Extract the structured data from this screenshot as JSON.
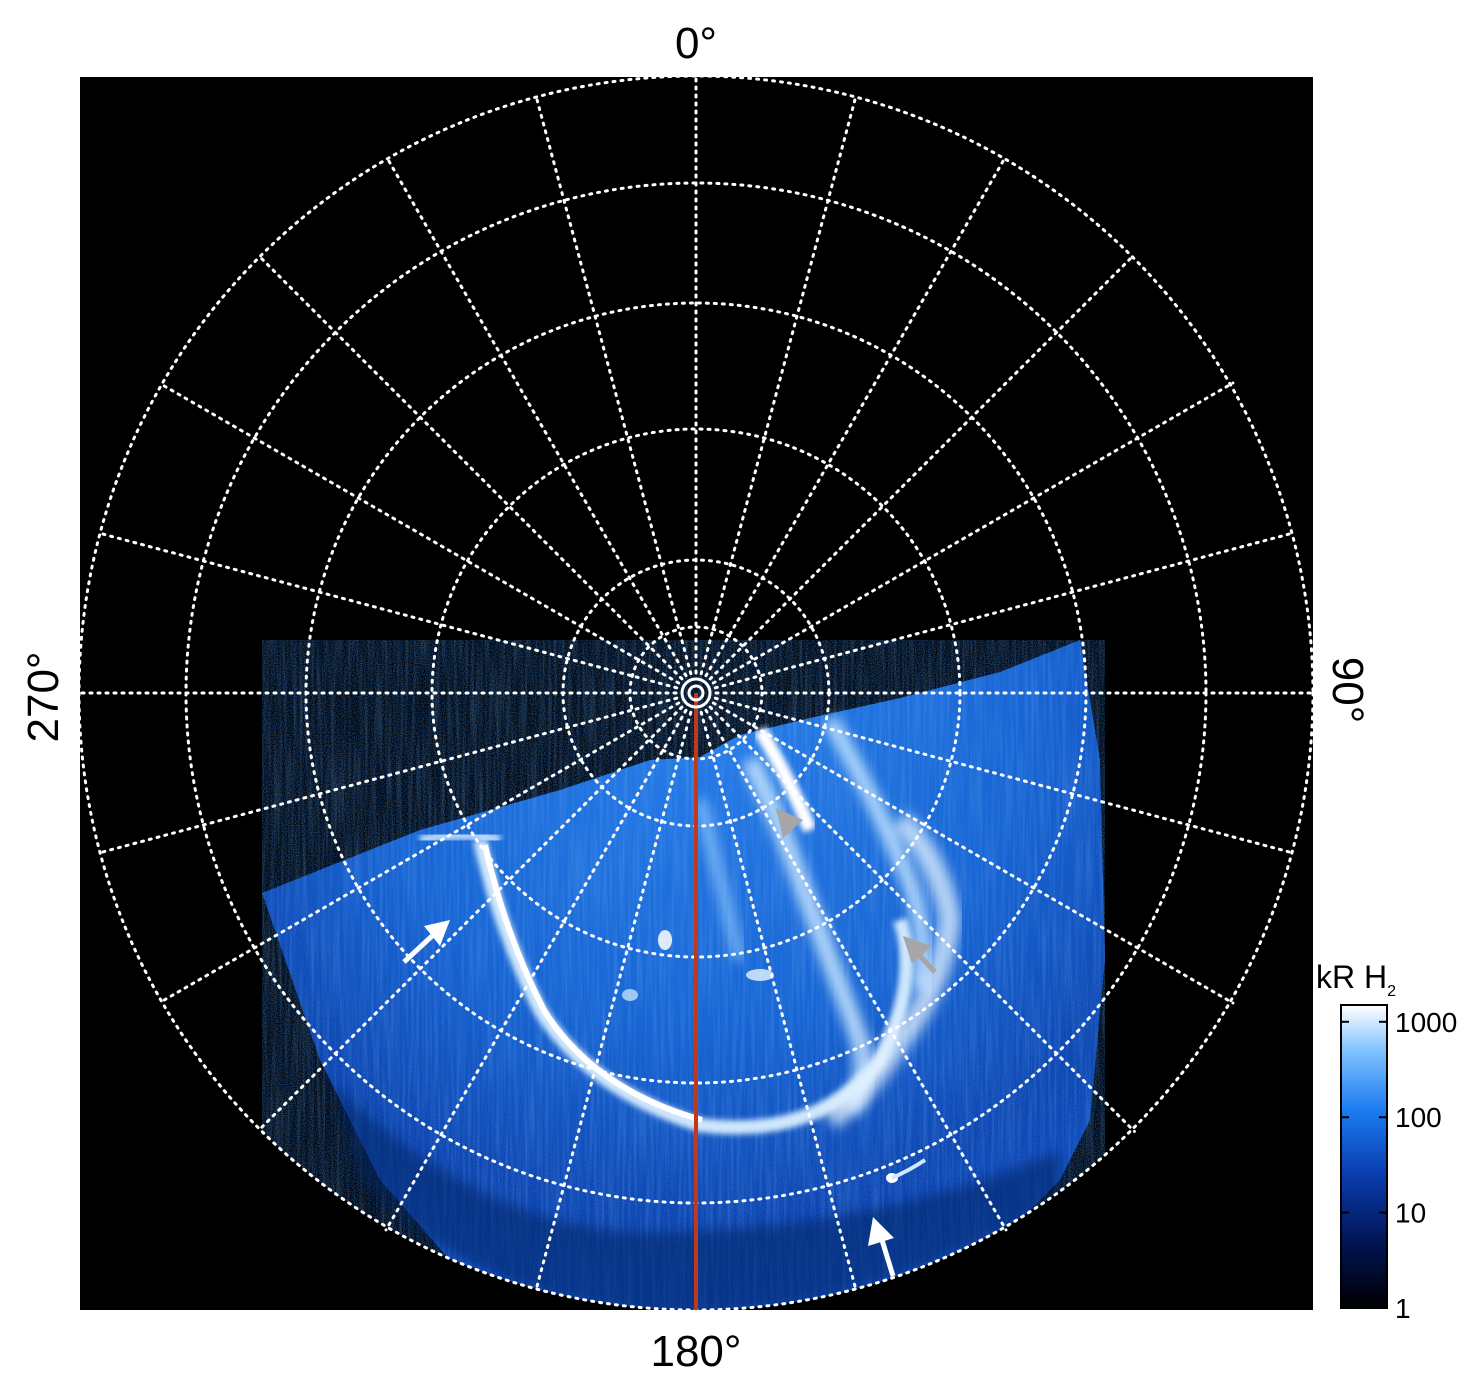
{
  "labels": {
    "top": "0°",
    "bottom": "180°",
    "left": "270°",
    "right": "90°"
  },
  "colorbar": {
    "title_main": "kR H",
    "title_sub": "2",
    "ticks": [
      {
        "label": "1000",
        "value": 1000
      },
      {
        "label": "100",
        "value": 100
      },
      {
        "label": "10",
        "value": 10
      },
      {
        "label": "1",
        "value": 1
      }
    ],
    "scale": "log",
    "colors": [
      "#000000",
      "#00124e",
      "#0a3fb0",
      "#1a7bf0",
      "#7fc3ff",
      "#ffffff"
    ]
  },
  "colors": {
    "background": "#000000",
    "grid": "#ffffff",
    "meridian_line": "#c0391b",
    "arrow_white": "#ffffff",
    "arrow_grey": "#a6a6a6"
  },
  "arrows": [
    {
      "name": "arrow-white-left",
      "color": "white"
    },
    {
      "name": "arrow-white-bottom",
      "color": "white"
    },
    {
      "name": "arrow-grey-upper",
      "color": "grey"
    },
    {
      "name": "arrow-grey-right",
      "color": "grey"
    }
  ]
}
